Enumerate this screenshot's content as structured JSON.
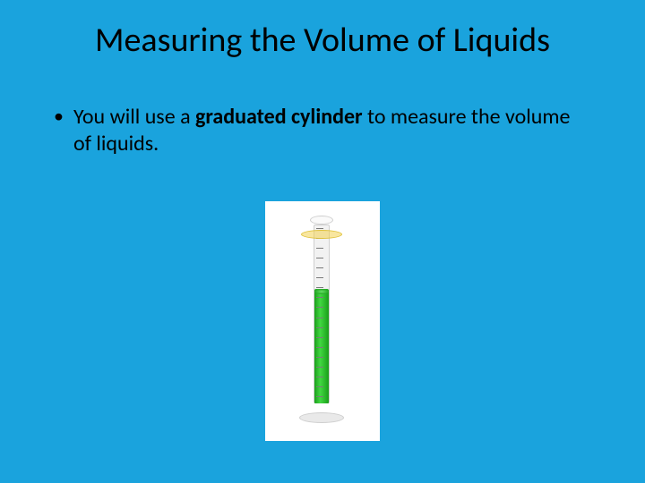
{
  "title": "Measuring the Volume of Liquids",
  "bullet": {
    "marker": "•",
    "pre": "You will use a ",
    "bold": "graduated cylinder",
    "post": " to measure the volume of liquids."
  },
  "cylinder": {
    "liquid_color_dark": "#1a9e1a",
    "liquid_color_light": "#42d842",
    "guard_color": "#f3d250",
    "glass_border": "#cfcfcf",
    "base_color": "#e9e9e9",
    "background": "#ffffff",
    "ticks": 18
  },
  "slide_background": "#1aa3dd"
}
